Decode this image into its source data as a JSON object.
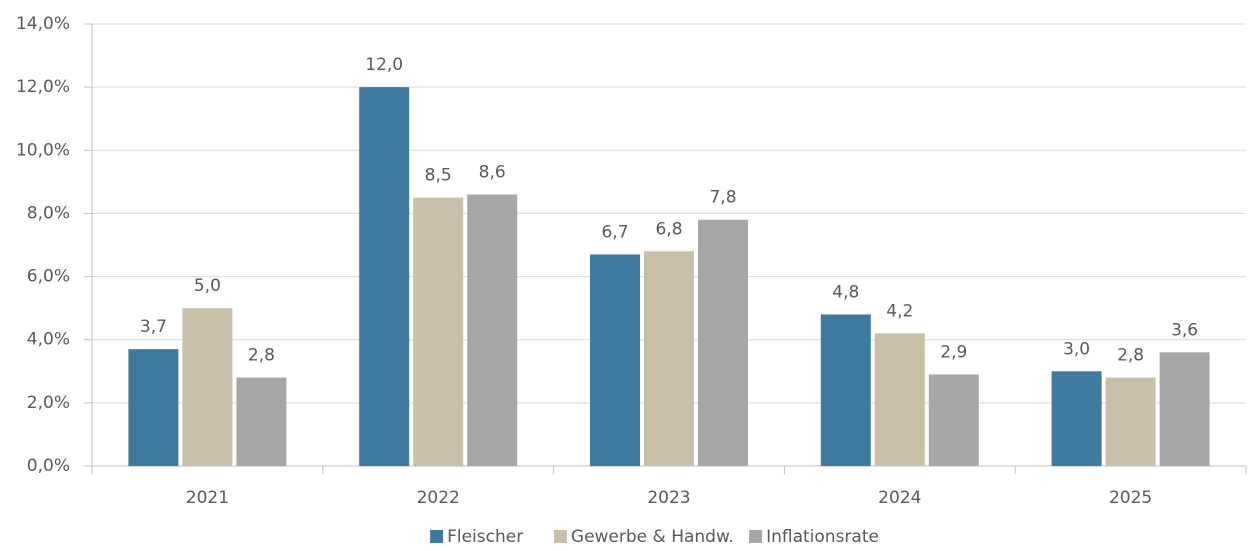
{
  "chart_data": {
    "type": "bar",
    "categories": [
      "2021",
      "2022",
      "2023",
      "2024",
      "2025"
    ],
    "series": [
      {
        "name": "Fleischer",
        "color": "#3d7a9e",
        "values": [
          3.7,
          12.0,
          6.7,
          4.8,
          3.0
        ],
        "value_labels": [
          "3,7",
          "12,0",
          "6,7",
          "4,8",
          "3,0"
        ]
      },
      {
        "name": "Gewerbe & Handw.",
        "color": "#c9bfa8",
        "values": [
          5.0,
          8.5,
          6.8,
          4.2,
          2.8
        ],
        "value_labels": [
          "5,0",
          "8,5",
          "6,8",
          "4,2",
          "2,8"
        ]
      },
      {
        "name": "Inflationsrate",
        "color": "#a6a6a6",
        "values": [
          2.8,
          8.6,
          7.8,
          2.9,
          3.6
        ],
        "value_labels": [
          "2,8",
          "8,6",
          "7,8",
          "2,9",
          "3,6"
        ]
      }
    ],
    "ylim": [
      0,
      14
    ],
    "yticks": [
      {
        "value": 0,
        "label": "0,0%"
      },
      {
        "value": 2,
        "label": "2,0%"
      },
      {
        "value": 4,
        "label": "4,0%"
      },
      {
        "value": 6,
        "label": "6,0%"
      },
      {
        "value": 8,
        "label": "8,0%"
      },
      {
        "value": 10,
        "label": "10,0%"
      },
      {
        "value": 12,
        "label": "12,0%"
      },
      {
        "value": 14,
        "label": "14,0%"
      }
    ],
    "grid": true,
    "legend": "bottom"
  }
}
